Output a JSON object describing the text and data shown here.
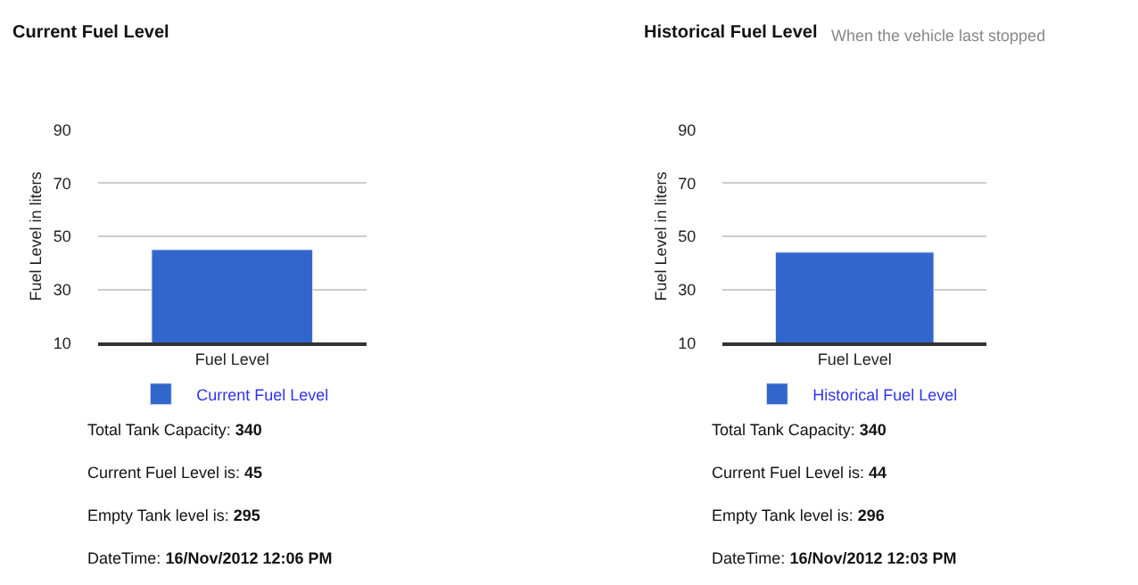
{
  "chart_data": [
    {
      "type": "bar",
      "title": "Current Fuel Level",
      "ylabel": "Fuel Level in liters",
      "categories": [
        "Fuel Level"
      ],
      "series": [
        {
          "name": "Current Fuel Level",
          "color": "#3366cc",
          "values": [
            45
          ]
        }
      ],
      "ylim": [
        10,
        90
      ],
      "yticks": [
        10,
        30,
        50,
        70,
        90
      ],
      "grid": "y",
      "legend": "bottom",
      "annotations": [
        "Total Tank Capacity: 340",
        "Current Fuel Level is: 45",
        "Empty Tank level is: 295",
        "DateTime: 16/Nov/2012 12:06 PM"
      ]
    },
    {
      "type": "bar",
      "title": "Historical Fuel Level",
      "subtitle": "When the vehicle last stopped",
      "ylabel": "Fuel Level in liters",
      "categories": [
        "Fuel Level"
      ],
      "series": [
        {
          "name": "Historical Fuel Level",
          "color": "#3366cc",
          "values": [
            44
          ]
        }
      ],
      "ylim": [
        10,
        90
      ],
      "yticks": [
        10,
        30,
        50,
        70,
        90
      ],
      "grid": "y",
      "legend": "bottom",
      "annotations": [
        "Total Tank Capacity: 340",
        "Current Fuel Level is: 44",
        "Empty Tank level is: 296",
        "DateTime: 16/Nov/2012 12:03 PM"
      ]
    }
  ]
}
